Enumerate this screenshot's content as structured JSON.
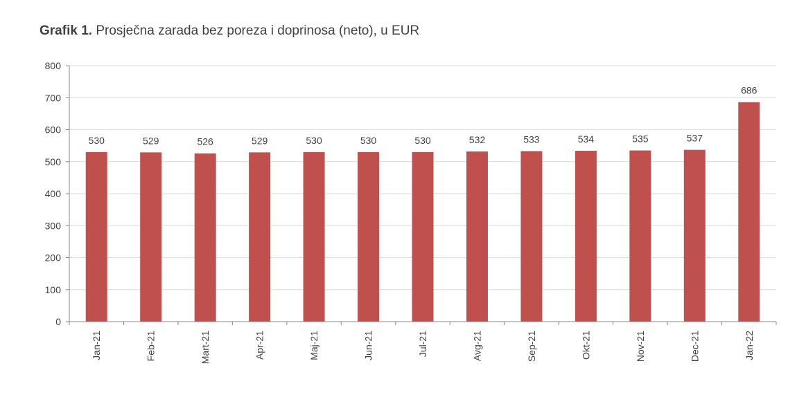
{
  "title_bold": "Grafik 1.",
  "title_rest": "Prosječna zarada bez poreza i doprinosa (neto), u EUR",
  "chart_data": {
    "type": "bar",
    "title": "Grafik 1. Prosječna zarada bez poreza i doprinosa (neto), u EUR",
    "categories": [
      "Jan-21",
      "Feb-21",
      "Mart-21",
      "Apr-21",
      "Maj-21",
      "Jun-21",
      "Jul-21",
      "Avg-21",
      "Sep-21",
      "Okt-21",
      "Nov-21",
      "Dec-21",
      "Jan-22"
    ],
    "values": [
      530,
      529,
      526,
      529,
      530,
      530,
      530,
      532,
      533,
      534,
      535,
      537,
      686
    ],
    "value_labels": [
      "530",
      "529",
      "526",
      "529",
      "530",
      "530",
      "530",
      "532",
      "533",
      "534",
      "535",
      "537",
      "686"
    ],
    "yticks": [
      "0",
      "100",
      "200",
      "300",
      "400",
      "500",
      "600",
      "700",
      "800"
    ],
    "ylim": [
      0,
      800
    ],
    "bar_color": "#c0504d",
    "grid": true,
    "legend": false
  }
}
